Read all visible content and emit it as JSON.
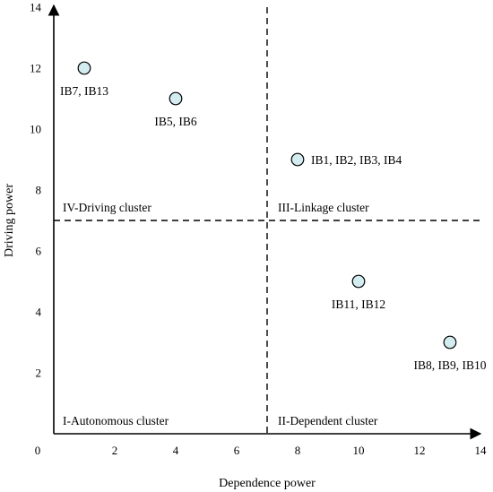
{
  "chart_data": {
    "type": "scatter",
    "xlabel": "Dependence power",
    "ylabel": "Driving power",
    "xlim": [
      0,
      14
    ],
    "ylim": [
      0,
      14
    ],
    "origin_label": "0",
    "x_ticks": [
      2,
      4,
      6,
      8,
      10,
      12,
      14
    ],
    "y_ticks": [
      2,
      4,
      6,
      8,
      10,
      12,
      14
    ],
    "divider_x": 7,
    "divider_y": 7,
    "points": [
      {
        "x": 1,
        "y": 12,
        "label": "IB7, IB13",
        "label_pos": "below"
      },
      {
        "x": 4,
        "y": 11,
        "label": "IB5, IB6",
        "label_pos": "below"
      },
      {
        "x": 8,
        "y": 9,
        "label": "IB1, IB2, IB3, IB4",
        "label_pos": "right"
      },
      {
        "x": 10,
        "y": 5,
        "label": "IB11, IB12",
        "label_pos": "below"
      },
      {
        "x": 13,
        "y": 3,
        "label": "IB8, IB9, IB10",
        "label_pos": "below"
      }
    ],
    "quadrants": [
      {
        "id": "driving",
        "label": "IV-Driving cluster"
      },
      {
        "id": "linkage",
        "label": "III-Linkage cluster"
      },
      {
        "id": "autonomous",
        "label": "I-Autonomous cluster"
      },
      {
        "id": "dependent",
        "label": "II-Dependent cluster"
      }
    ],
    "point_fill": "#d3ecf0",
    "axis_color": "#000000",
    "grid": false,
    "legend": "none"
  }
}
